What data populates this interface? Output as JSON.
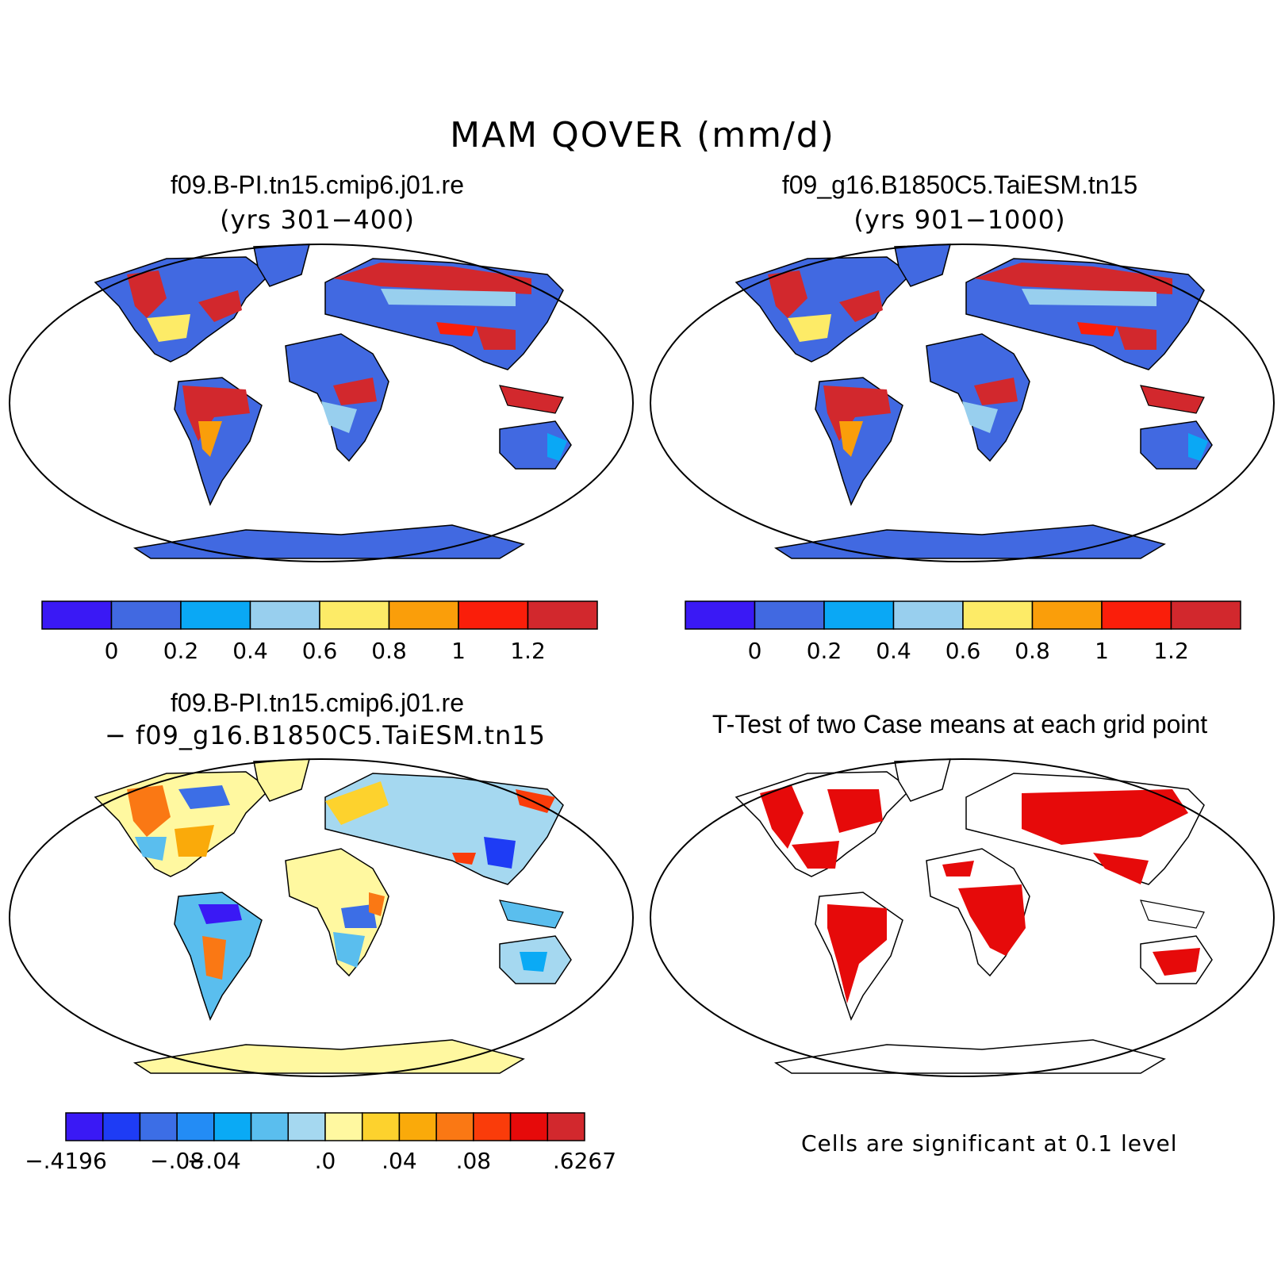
{
  "title": "MAM QOVER (mm/d)",
  "panels": [
    {
      "id": "p1",
      "title": "f09.B-PI.tn15.cmip6.j01.re",
      "subtitle": "(yrs 301−400)",
      "map_fill": "field"
    },
    {
      "id": "p2",
      "title": "f09_g16.B1850C5.TaiESM.tn15",
      "subtitle": "(yrs 901−1000)",
      "map_fill": "field"
    },
    {
      "id": "p3",
      "title": "f09.B-PI.tn15.cmip6.j01.re",
      "subtitle": "− f09_g16.B1850C5.TaiESM.tn15",
      "map_fill": "difference"
    },
    {
      "id": "p4",
      "title": "T-Test of two Case means at each grid point",
      "subtitle": "",
      "map_fill": "significance"
    }
  ],
  "colorbar_abs": {
    "colors": [
      "#3a19f5",
      "#4169e1",
      "#0aa8f5",
      "#98cfee",
      "#fdeb67",
      "#fa9e0a",
      "#fa1e0a",
      "#d2282d"
    ],
    "labels": [
      "0",
      "0.2",
      "0.4",
      "0.6",
      "0.8",
      "1",
      "1.2"
    ]
  },
  "colorbar_diff": {
    "colors": [
      "#3a19f5",
      "#1e3cf5",
      "#3c6ee6",
      "#238cf5",
      "#0aaaf5",
      "#5abeee",
      "#a5d8f0",
      "#fff8a0",
      "#fdd22d",
      "#faaa0a",
      "#fa7814",
      "#fa3c0a",
      "#e60a0a",
      "#d2282d"
    ],
    "labels": [
      "−.4196",
      "−.08",
      "−.04",
      ".0",
      ".04",
      ".08",
      ".6267"
    ]
  },
  "significance_note": "Cells are significant at 0.1 level",
  "colors": {
    "ocean": "#ffffff",
    "land_low": "#4169e1",
    "land_wet": "#d2282d",
    "diff_base": "#fff8a0",
    "significant": "#e60a0a"
  }
}
